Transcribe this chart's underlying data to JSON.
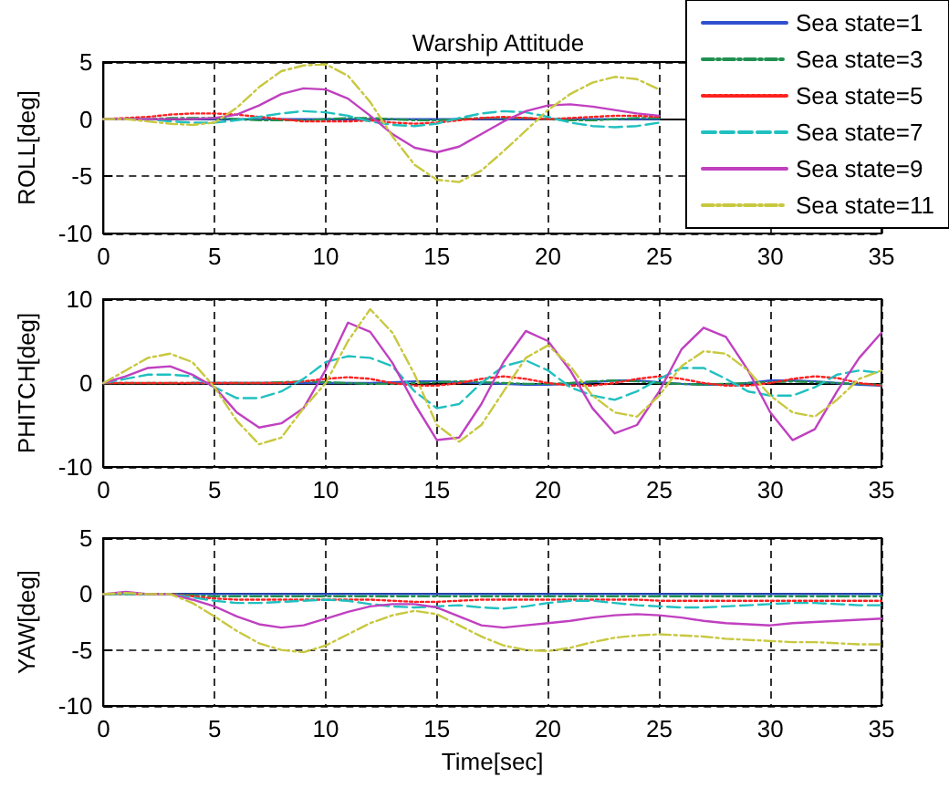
{
  "chart_data": [
    {
      "type": "line",
      "title": "Warship Attitude",
      "ylabel": "ROLL[deg]",
      "x": [
        0,
        1,
        2,
        3,
        4,
        5,
        6,
        7,
        8,
        9,
        10,
        11,
        12,
        13,
        14,
        15,
        16,
        17,
        18,
        19,
        20,
        21,
        22,
        23,
        24,
        25
      ],
      "xlim": [
        0,
        35
      ],
      "xticks": [
        0,
        5,
        10,
        15,
        20,
        25,
        30,
        35
      ],
      "ylim": [
        -10,
        5
      ],
      "yticks": [
        -10,
        -5,
        0,
        5
      ],
      "grid": true,
      "legend": "top right",
      "series": [
        {
          "name": "Sea state=1",
          "color": "#3050d0",
          "line_style": "solid",
          "values": [
            null,
            null,
            null,
            null,
            0,
            0,
            0,
            0,
            0,
            0,
            0,
            0,
            0,
            0,
            0,
            0,
            0,
            0,
            0,
            0,
            0,
            0,
            0,
            0,
            0,
            0
          ]
        },
        {
          "name": "Sea state=3",
          "color": "#209050",
          "line_style": "dashdot",
          "values": [
            0,
            0,
            0,
            0.1,
            0.1,
            0.1,
            0,
            -0.1,
            -0.1,
            -0.1,
            0,
            0.1,
            0.1,
            0,
            -0.1,
            -0.1,
            0,
            0.1,
            0.1,
            0.1,
            0,
            -0.1,
            -0.1,
            0,
            0.1,
            0.1
          ]
        },
        {
          "name": "Sea state=5",
          "color": "#ff2020",
          "line_style": "dotted",
          "values": [
            0,
            0.1,
            0.2,
            0.4,
            0.5,
            0.5,
            0.4,
            0.2,
            0,
            -0.2,
            -0.2,
            -0.2,
            -0.1,
            -0.3,
            -0.4,
            -0.3,
            -0.1,
            0.1,
            0.2,
            0.1,
            0,
            0.1,
            0.2,
            0.3,
            0.3,
            0.2
          ]
        },
        {
          "name": "Sea state=7",
          "color": "#20c0c0",
          "line_style": "dashed",
          "values": [
            0,
            0,
            0,
            -0.2,
            -0.3,
            -0.3,
            -0.1,
            0.2,
            0.5,
            0.7,
            0.6,
            0.3,
            -0.2,
            -0.5,
            -0.6,
            -0.4,
            0.1,
            0.5,
            0.7,
            0.6,
            0.2,
            -0.3,
            -0.6,
            -0.7,
            -0.6,
            -0.3
          ]
        },
        {
          "name": "Sea state=9",
          "color": "#c040c0",
          "line_style": "solid",
          "values": [
            0,
            0,
            0,
            0,
            0,
            0.1,
            0.4,
            1.2,
            2.2,
            2.7,
            2.6,
            1.8,
            0.3,
            -1.3,
            -2.5,
            -2.9,
            -2.4,
            -1.3,
            -0.2,
            0.7,
            1.2,
            1.3,
            1.1,
            0.8,
            0.5,
            0.3
          ]
        },
        {
          "name": "Sea state=11",
          "color": "#c8c840",
          "line_style": "dashdot",
          "values": [
            0,
            0,
            -0.2,
            -0.4,
            -0.5,
            -0.3,
            1.0,
            2.8,
            4.2,
            4.7,
            4.8,
            3.8,
            1.5,
            -1.5,
            -4.0,
            -5.3,
            -5.5,
            -4.5,
            -2.8,
            -1.0,
            0.8,
            2.2,
            3.2,
            3.7,
            3.5,
            2.6
          ]
        }
      ]
    },
    {
      "type": "line",
      "ylabel": "PHITCH[deg]",
      "x": [
        0,
        1,
        2,
        3,
        4,
        5,
        6,
        7,
        8,
        9,
        10,
        11,
        12,
        13,
        14,
        15,
        16,
        17,
        18,
        19,
        20,
        21,
        22,
        23,
        24,
        25,
        26,
        27,
        28,
        29,
        30,
        31,
        32,
        33,
        34,
        35
      ],
      "xlim": [
        0,
        35
      ],
      "xticks": [
        0,
        5,
        10,
        15,
        20,
        25,
        30,
        35
      ],
      "ylim": [
        -10,
        10
      ],
      "yticks": [
        -10,
        0,
        10
      ],
      "grid": true,
      "series": [
        {
          "color": "#3050d0",
          "line_style": "solid",
          "values": [
            null,
            null,
            null,
            null,
            0,
            0,
            0,
            0,
            0,
            0,
            0,
            0,
            0,
            0.1,
            0.2,
            0.2,
            0.1,
            0,
            -0.1,
            -0.2,
            -0.2,
            -0.1,
            0.1,
            0.3,
            0.3,
            0.1,
            -0.1,
            -0.2,
            -0.2,
            0,
            0.3,
            0.3,
            0.2,
            0,
            -0.2,
            -0.3
          ]
        },
        {
          "color": "#209050",
          "line_style": "dashdot",
          "values": [
            0,
            0,
            0,
            0,
            0,
            0,
            0,
            0,
            0.1,
            0.2,
            0.1,
            0,
            -0.1,
            -0.1,
            0,
            0.1,
            0.2,
            0.1,
            0,
            -0.1,
            -0.1,
            0,
            0.2,
            0.3,
            0.2,
            0,
            -0.1,
            -0.2,
            -0.1,
            0,
            0.1,
            0.2,
            0.1,
            0,
            -0.1,
            -0.2
          ]
        },
        {
          "color": "#ff2020",
          "line_style": "dotted",
          "values": [
            0,
            0,
            0,
            0,
            0,
            0,
            0,
            0,
            0,
            0.2,
            0.5,
            0.7,
            0.5,
            0,
            -0.3,
            -0.3,
            0,
            0.5,
            0.8,
            0.5,
            0,
            -0.3,
            -0.3,
            0,
            0.5,
            0.8,
            0.5,
            0,
            -0.3,
            -0.3,
            0,
            0.5,
            0.8,
            0.6,
            0,
            -0.3
          ]
        },
        {
          "color": "#20c0c0",
          "line_style": "dashed",
          "values": [
            0,
            0.5,
            1.0,
            1.0,
            0.8,
            -0.5,
            -1.8,
            -1.8,
            -1.0,
            0.5,
            2.5,
            3.2,
            3.0,
            2.0,
            -1.0,
            -3.0,
            -2.5,
            0,
            2.0,
            2.7,
            1.5,
            -0.5,
            -1.5,
            -2.0,
            -1.0,
            0.5,
            1.8,
            1.8,
            0.5,
            -1.0,
            -1.5,
            -1.5,
            -0.5,
            1.0,
            1.5,
            1.2
          ]
        },
        {
          "color": "#c040c0",
          "line_style": "solid",
          "values": [
            0,
            0.8,
            1.8,
            2.0,
            1.0,
            -0.5,
            -3.5,
            -5.3,
            -4.8,
            -3.0,
            1.6,
            7.2,
            6.1,
            2.4,
            -2.5,
            -6.8,
            -6.5,
            -2.5,
            2.5,
            6.2,
            5.0,
            1.5,
            -3.0,
            -6.0,
            -5.0,
            -1.0,
            4.0,
            6.6,
            5.5,
            1.5,
            -3.5,
            -6.8,
            -5.5,
            -1.0,
            3.0,
            6.0
          ]
        },
        {
          "color": "#c8c840",
          "line_style": "dashdot",
          "values": [
            0,
            1.5,
            3.0,
            3.5,
            2.5,
            -0.5,
            -4.5,
            -7.3,
            -6.5,
            -3.0,
            0,
            5.0,
            8.8,
            6.0,
            1.0,
            -5.0,
            -7.0,
            -5.0,
            -1.0,
            3.0,
            4.5,
            2.0,
            -1.5,
            -3.5,
            -4.0,
            -1.5,
            2.0,
            3.8,
            3.5,
            1.5,
            -1.5,
            -3.5,
            -4.0,
            -2.0,
            0.5,
            1.5
          ]
        }
      ]
    },
    {
      "type": "line",
      "ylabel": "YAW[deg]",
      "xlabel": "Time[sec]",
      "x": [
        0,
        1,
        2,
        3,
        4,
        5,
        6,
        7,
        8,
        9,
        10,
        11,
        12,
        13,
        14,
        15,
        16,
        17,
        18,
        19,
        20,
        21,
        22,
        23,
        24,
        25,
        26,
        27,
        28,
        29,
        30,
        31,
        32,
        33,
        34,
        35
      ],
      "xlim": [
        0,
        35
      ],
      "xticks": [
        0,
        5,
        10,
        15,
        20,
        25,
        30,
        35
      ],
      "ylim": [
        -10,
        5
      ],
      "yticks": [
        -10,
        -5,
        0,
        5
      ],
      "grid": true,
      "series": [
        {
          "color": "#3050d0",
          "line_style": "solid",
          "values": [
            null,
            null,
            null,
            0,
            0,
            0,
            0,
            0,
            0,
            0,
            0,
            0,
            0,
            0,
            0,
            0,
            0,
            0,
            0,
            0,
            0,
            0,
            0,
            0,
            0,
            0,
            0,
            0,
            0,
            0,
            0,
            0,
            0,
            0,
            0,
            0
          ]
        },
        {
          "color": "#209050",
          "line_style": "dashdot",
          "values": [
            0,
            0,
            0,
            0,
            -0.1,
            -0.2,
            -0.2,
            -0.2,
            -0.2,
            -0.2,
            -0.2,
            -0.2,
            -0.2,
            -0.2,
            -0.2,
            -0.2,
            -0.2,
            -0.2,
            -0.2,
            -0.2,
            -0.2,
            -0.2,
            -0.2,
            -0.2,
            -0.2,
            -0.2,
            -0.2,
            -0.2,
            -0.2,
            -0.2,
            -0.2,
            -0.2,
            -0.2,
            -0.2,
            -0.2,
            -0.2
          ]
        },
        {
          "color": "#ff2020",
          "line_style": "dotted",
          "values": [
            0,
            0,
            0,
            0,
            -0.2,
            -0.4,
            -0.5,
            -0.5,
            -0.5,
            -0.5,
            -0.5,
            -0.5,
            -0.5,
            -0.6,
            -0.7,
            -0.7,
            -0.6,
            -0.5,
            -0.5,
            -0.5,
            -0.5,
            -0.5,
            -0.5,
            -0.5,
            -0.5,
            -0.6,
            -0.6,
            -0.6,
            -0.6,
            -0.6,
            -0.6,
            -0.6,
            -0.6,
            -0.6,
            -0.6,
            -0.6
          ]
        },
        {
          "color": "#20c0c0",
          "line_style": "dashed",
          "values": [
            0,
            0,
            0,
            0,
            -0.3,
            -0.6,
            -0.8,
            -0.8,
            -0.7,
            -0.6,
            -0.5,
            -0.6,
            -0.9,
            -1.1,
            -1.2,
            -1.1,
            -1.0,
            -1.2,
            -1.3,
            -1.1,
            -0.8,
            -0.6,
            -0.6,
            -0.8,
            -1.0,
            -1.1,
            -1.2,
            -1.2,
            -1.1,
            -1.0,
            -0.9,
            -0.8,
            -0.8,
            -0.9,
            -1.0,
            -1.0
          ]
        },
        {
          "color": "#c040c0",
          "line_style": "solid",
          "values": [
            0,
            0.2,
            0,
            0,
            -0.5,
            -1.1,
            -2.0,
            -2.7,
            -3.0,
            -2.8,
            -2.2,
            -1.6,
            -1.1,
            -0.9,
            -0.9,
            -1.2,
            -2.0,
            -2.8,
            -3.0,
            -2.8,
            -2.6,
            -2.4,
            -2.1,
            -1.9,
            -1.8,
            -1.9,
            -2.1,
            -2.4,
            -2.6,
            -2.7,
            -2.8,
            -2.6,
            -2.5,
            -2.4,
            -2.3,
            -2.2
          ]
        },
        {
          "color": "#c8c840",
          "line_style": "dashdot",
          "values": [
            0,
            0.1,
            0,
            0,
            -0.8,
            -2.0,
            -3.3,
            -4.4,
            -5.0,
            -5.2,
            -4.6,
            -3.6,
            -2.6,
            -1.9,
            -1.5,
            -1.8,
            -2.8,
            -3.8,
            -4.6,
            -5.0,
            -5.1,
            -4.8,
            -4.3,
            -3.9,
            -3.7,
            -3.6,
            -3.7,
            -3.8,
            -4.0,
            -4.1,
            -4.2,
            -4.3,
            -4.3,
            -4.4,
            -4.5,
            -4.5
          ]
        }
      ]
    }
  ]
}
